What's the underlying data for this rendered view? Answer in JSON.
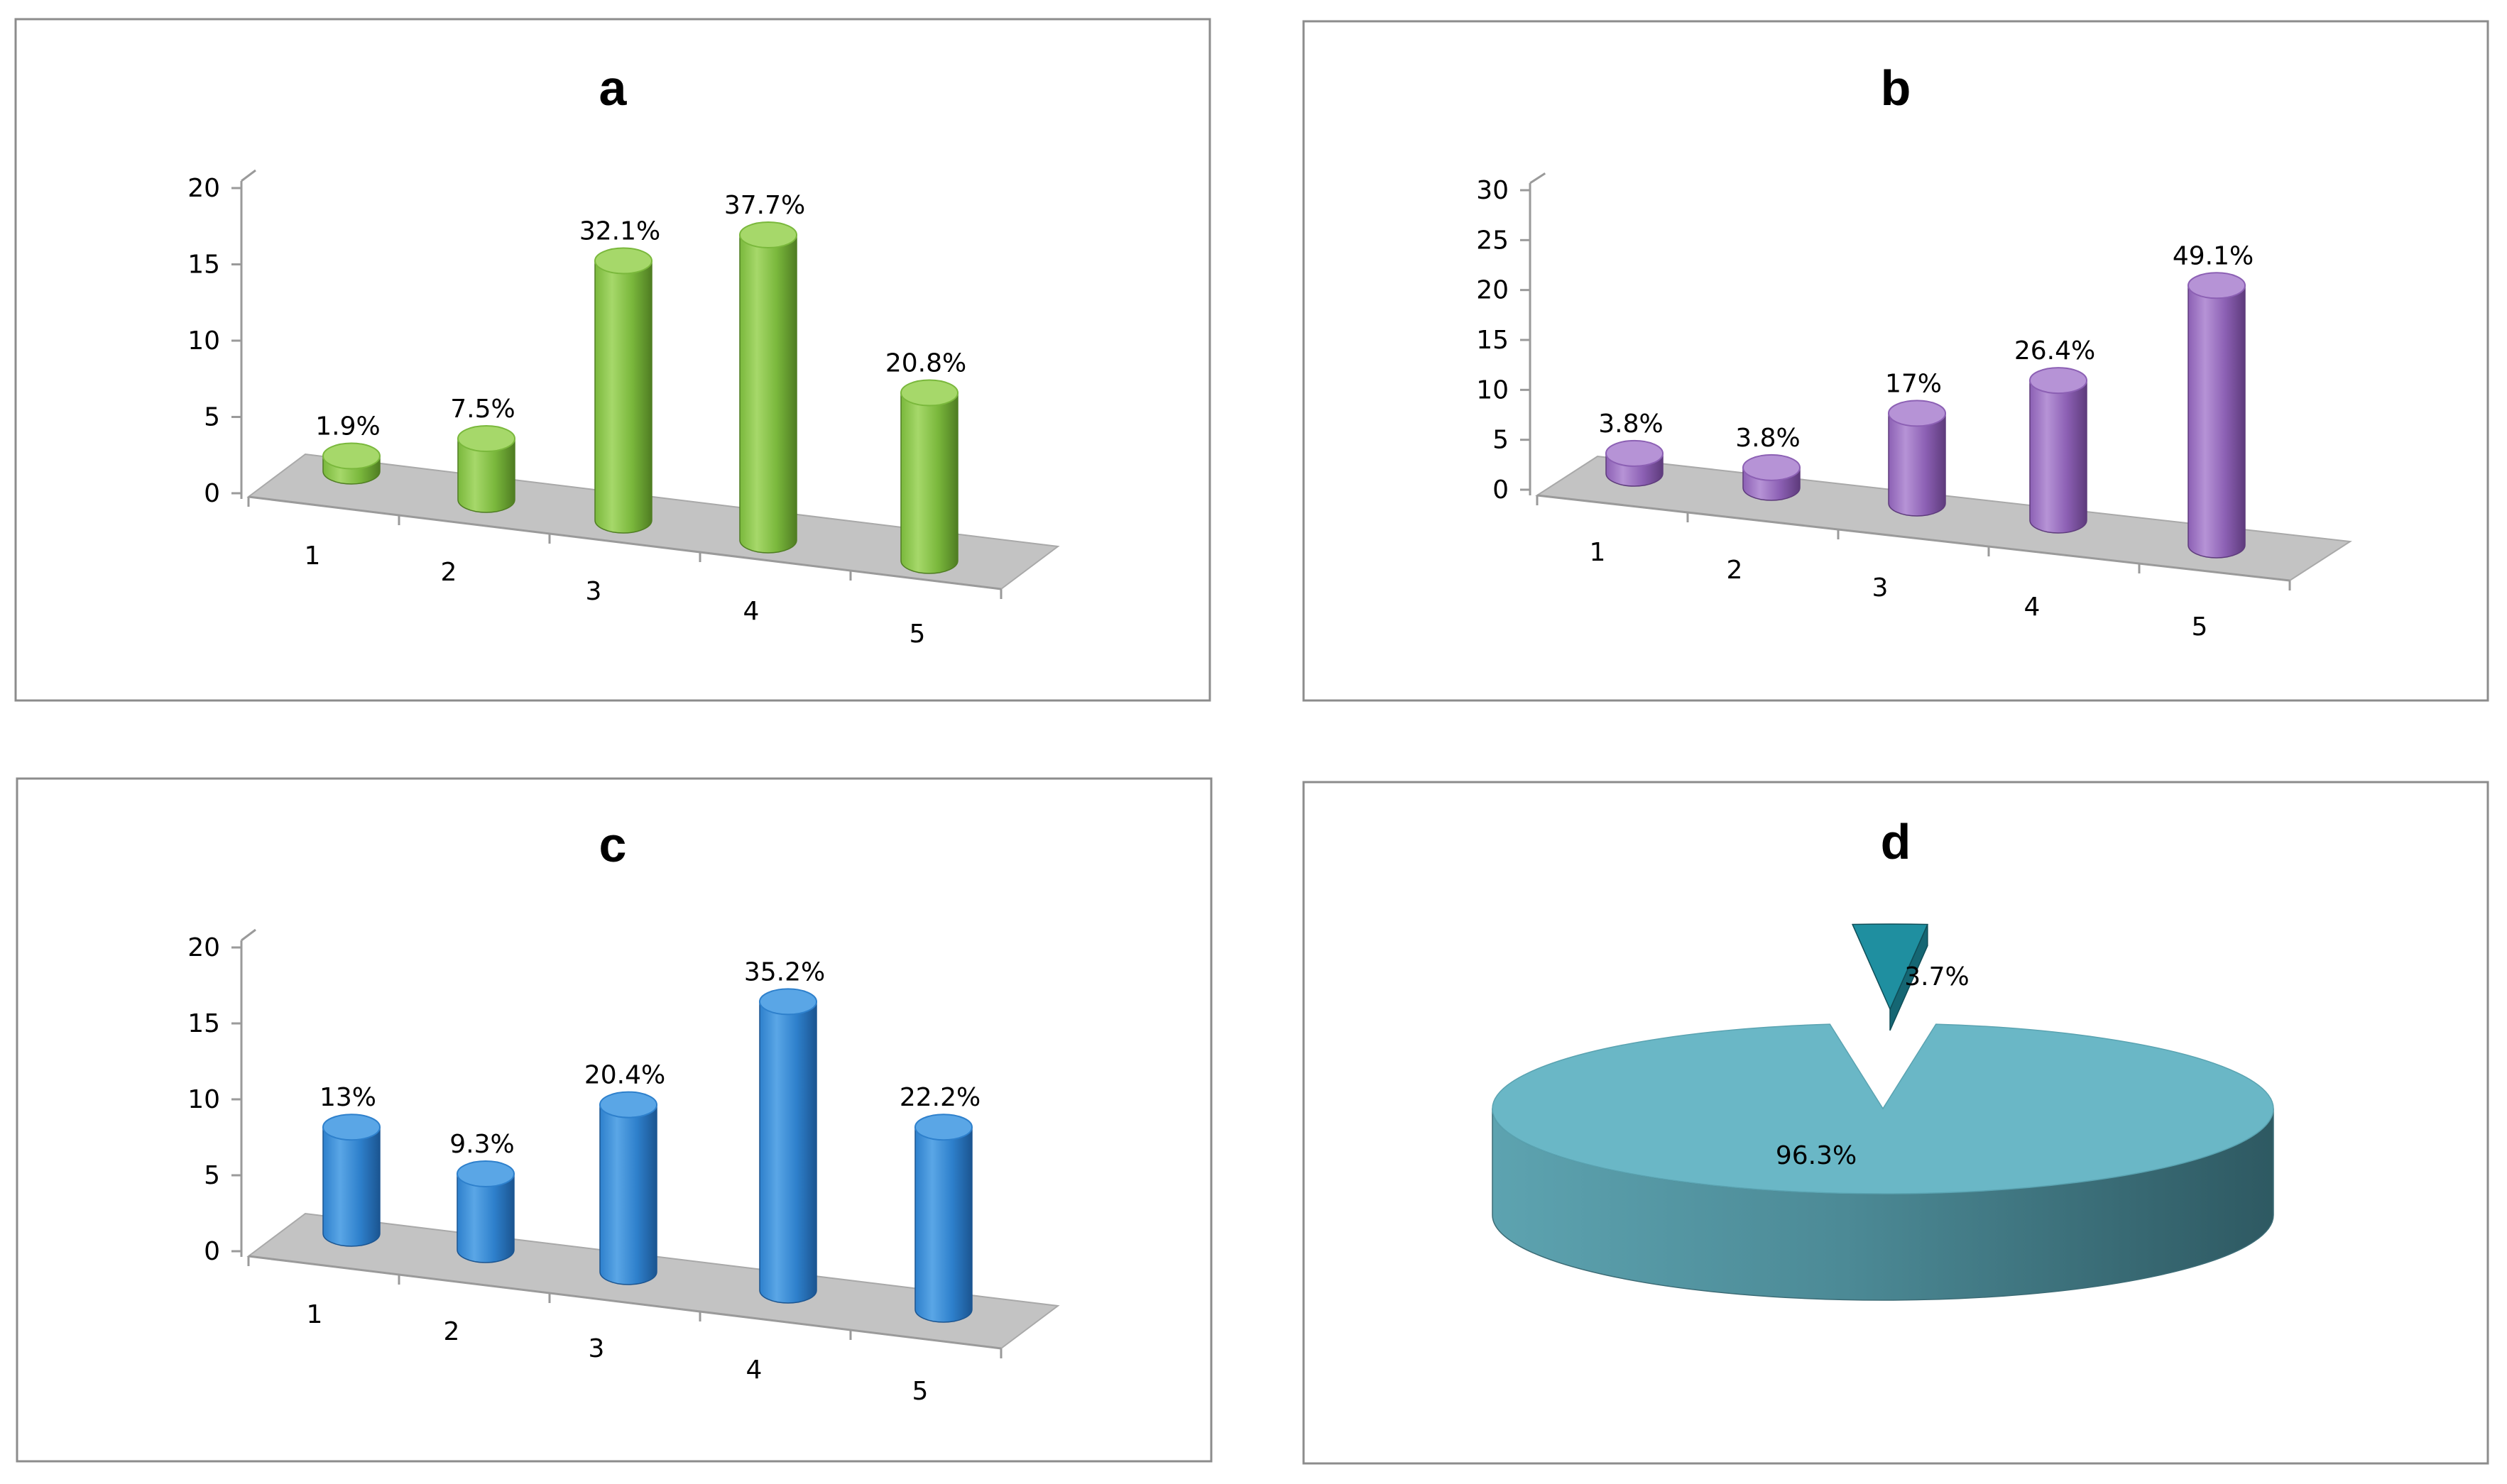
{
  "chart_data": [
    {
      "id": "a",
      "type": "bar",
      "style": "3d-cylinder",
      "title": "a",
      "categories": [
        "1",
        "2",
        "3",
        "4",
        "5"
      ],
      "values": [
        1,
        4,
        17,
        20,
        11
      ],
      "data_labels": [
        "1.9%",
        "7.5%",
        "32.1%",
        "37.7%",
        "20.8%"
      ],
      "ylim": [
        0,
        20
      ],
      "yticks": [
        "0",
        "5",
        "10",
        "15",
        "20"
      ],
      "colors": {
        "light": "#a6d86a",
        "mid": "#7ab83c",
        "dark": "#4f7d22"
      }
    },
    {
      "id": "b",
      "type": "bar",
      "style": "3d-cylinder",
      "title": "b",
      "categories": [
        "1",
        "2",
        "3",
        "4",
        "5"
      ],
      "values": [
        2,
        2,
        9,
        14,
        26
      ],
      "data_labels": [
        "3.8%",
        "3.8%",
        "17%",
        "26.4%",
        "49.1%"
      ],
      "ylim": [
        0,
        30
      ],
      "yticks": [
        "0",
        "5",
        "10",
        "15",
        "20",
        "25",
        "30"
      ],
      "colors": {
        "light": "#b693d6",
        "mid": "#8c60b4",
        "dark": "#5e3b7c"
      }
    },
    {
      "id": "c",
      "type": "bar",
      "style": "3d-cylinder",
      "title": "c",
      "categories": [
        "1",
        "2",
        "3",
        "4",
        "5"
      ],
      "values": [
        7,
        5,
        11,
        19,
        12
      ],
      "data_labels": [
        "13%",
        "9.3%",
        "20.4%",
        "35.2%",
        "22.2%"
      ],
      "ylim": [
        0,
        20
      ],
      "yticks": [
        "0",
        "5",
        "10",
        "15",
        "20"
      ],
      "colors": {
        "light": "#5aa6e6",
        "mid": "#2e80cc",
        "dark": "#1b5591"
      }
    },
    {
      "id": "d",
      "type": "pie",
      "style": "3d-exploded",
      "title": "d",
      "values": [
        96.3,
        3.7
      ],
      "data_labels": [
        "96.3%",
        "3.7%"
      ],
      "colors": {
        "top": "#6ab7c6",
        "side_light": "#5da3b0",
        "side_dark": "#2e5962",
        "slice_top": "#1f8fa0",
        "slice_side": "#156673"
      }
    }
  ]
}
